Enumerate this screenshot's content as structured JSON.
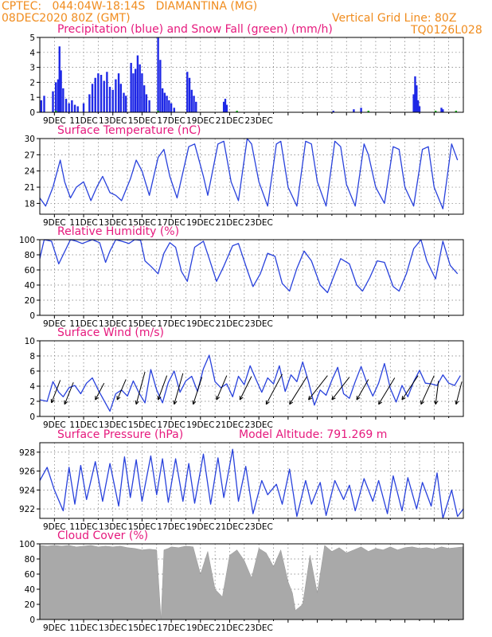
{
  "header": {
    "line1": "CPTEC:   044:04W-18:14S   DIAMANTINA (MG)",
    "line2": "08DEC2020 80Z (GMT)",
    "grid_note": "Vertical Grid Line: 80Z",
    "code": "TQ0126L028"
  },
  "colors": {
    "header": "#f08c1e",
    "title": "#e6197d",
    "precip": "#1e28e6",
    "snow": "#00b400",
    "line": "#2841dc",
    "cloud": "#a9a9a9",
    "arrow": "#000000"
  },
  "x_ticks": [
    "9DEC",
    "11DEC",
    "13DEC",
    "15DEC",
    "17DEC",
    "19DEC",
    "21DEC",
    "23DEC"
  ],
  "chart_data": [
    {
      "type": "bar",
      "id": "precip",
      "title": "Precipitation (blue) and Snow Fall (green) (mm/h)",
      "ylim": [
        0,
        5
      ],
      "yticks": [
        "0",
        "1",
        "2",
        "3",
        "4",
        "5"
      ],
      "series": [
        {
          "name": "Precipitation",
          "points": [
            [
              0.1,
              0.8
            ],
            [
              0.3,
              1.1
            ],
            [
              0.9,
              1.4
            ],
            [
              1.1,
              2.0
            ],
            [
              1.25,
              2.2
            ],
            [
              1.35,
              4.4
            ],
            [
              1.45,
              2.8
            ],
            [
              1.6,
              1.6
            ],
            [
              1.8,
              0.9
            ],
            [
              2.0,
              0.6
            ],
            [
              2.2,
              0.8
            ],
            [
              2.4,
              0.5
            ],
            [
              2.6,
              0.4
            ],
            [
              3.0,
              0.6
            ],
            [
              3.4,
              1.2
            ],
            [
              3.6,
              1.9
            ],
            [
              3.8,
              2.3
            ],
            [
              4.0,
              2.6
            ],
            [
              4.2,
              2.5
            ],
            [
              4.4,
              2.1
            ],
            [
              4.6,
              2.7
            ],
            [
              4.8,
              1.7
            ],
            [
              5.0,
              1.5
            ],
            [
              5.2,
              2.2
            ],
            [
              5.4,
              2.6
            ],
            [
              5.55,
              1.9
            ],
            [
              5.75,
              1.3
            ],
            [
              5.9,
              1.1
            ],
            [
              6.25,
              3.3
            ],
            [
              6.4,
              2.6
            ],
            [
              6.55,
              2.9
            ],
            [
              6.7,
              3.8
            ],
            [
              6.85,
              3.2
            ],
            [
              7.0,
              2.6
            ],
            [
              7.15,
              1.8
            ],
            [
              7.3,
              1.2
            ],
            [
              7.5,
              0.8
            ],
            [
              8.1,
              5.0
            ],
            [
              8.25,
              3.5
            ],
            [
              8.4,
              1.6
            ],
            [
              8.55,
              1.3
            ],
            [
              8.7,
              1.1
            ],
            [
              8.85,
              0.8
            ],
            [
              9.0,
              0.6
            ],
            [
              9.2,
              0.3
            ],
            [
              10.1,
              2.7
            ],
            [
              10.25,
              2.3
            ],
            [
              10.4,
              1.5
            ],
            [
              10.55,
              1.1
            ],
            [
              10.7,
              0.7
            ],
            [
              12.6,
              0.7
            ],
            [
              12.7,
              0.9
            ],
            [
              12.8,
              0.5
            ],
            [
              20.1,
              0.1
            ],
            [
              21.5,
              0.2
            ],
            [
              22.0,
              0.3
            ],
            [
              25.6,
              1.2
            ],
            [
              25.7,
              2.4
            ],
            [
              25.8,
              1.8
            ],
            [
              25.9,
              0.8
            ],
            [
              26.0,
              0.4
            ],
            [
              27.5,
              0.3
            ],
            [
              27.6,
              0.2
            ]
          ]
        },
        {
          "name": "Snow Fall",
          "points": [
            [
              1.1,
              0.1
            ],
            [
              8.1,
              0.1
            ],
            [
              13.5,
              0.1
            ],
            [
              22.5,
              0.1
            ],
            [
              27.1,
              0.1
            ],
            [
              28.5,
              0.1
            ]
          ]
        }
      ]
    },
    {
      "type": "line",
      "id": "temp",
      "title": "Surface Temperature (nC)",
      "ylim": [
        16,
        30
      ],
      "yticks": [
        "18",
        "21",
        "24",
        "27",
        "30"
      ],
      "x": [
        0,
        0.4,
        0.9,
        1.4,
        1.7,
        2.1,
        2.5,
        3.0,
        3.5,
        3.9,
        4.3,
        4.8,
        5.2,
        5.6,
        6.2,
        6.6,
        7.0,
        7.5,
        8.1,
        8.5,
        8.9,
        9.4,
        10.2,
        10.6,
        11.2,
        11.5,
        12.2,
        12.6,
        13.1,
        13.6,
        14.2,
        14.5,
        15.0,
        15.6,
        16.2,
        16.5,
        17.0,
        17.6,
        18.2,
        18.6,
        19.0,
        19.6,
        20.2,
        20.6,
        21.0,
        21.6,
        22.2,
        22.5,
        23.0,
        23.6,
        24.2,
        24.6,
        25.0,
        25.6,
        26.2,
        26.6,
        27.0,
        27.6,
        28.2,
        28.6
      ],
      "y": [
        19,
        17.5,
        21,
        26,
        22,
        19,
        21,
        22,
        18.5,
        21,
        23,
        20,
        19.5,
        18.5,
        22.5,
        26,
        24,
        19.5,
        26.5,
        28,
        23,
        19,
        28.5,
        29,
        23,
        19.5,
        29,
        29.5,
        22,
        18.5,
        30,
        29,
        22,
        17.5,
        29,
        29.5,
        21,
        17.5,
        29.5,
        29,
        22,
        17.5,
        29.5,
        28.5,
        21.5,
        17.5,
        29,
        27,
        21,
        18,
        28.5,
        28,
        21,
        17.5,
        28,
        28.5,
        21,
        17,
        29,
        26
      ]
    },
    {
      "type": "line",
      "id": "rh",
      "title": "Relative Humidity (%)",
      "ylim": [
        0,
        100
      ],
      "yticks": [
        "0",
        "20",
        "40",
        "60",
        "80",
        "100"
      ],
      "x": [
        0,
        0.3,
        0.8,
        1.3,
        1.8,
        2.1,
        2.5,
        2.9,
        3.6,
        4.1,
        4.5,
        4.8,
        5.2,
        5.6,
        6.1,
        6.5,
        6.9,
        7.2,
        7.6,
        8.1,
        8.5,
        8.9,
        9.3,
        9.7,
        10.1,
        10.6,
        11.2,
        11.6,
        12.1,
        12.6,
        13.2,
        13.6,
        14.2,
        14.6,
        15.1,
        15.6,
        16.1,
        16.6,
        17.1,
        17.6,
        18.1,
        18.6,
        19.2,
        19.7,
        20.1,
        20.6,
        21.2,
        21.7,
        22.1,
        22.6,
        23.1,
        23.6,
        24.2,
        24.6,
        25.1,
        25.6,
        26.1,
        26.5,
        27.1,
        27.6,
        28.1,
        28.6
      ],
      "y": [
        75,
        100,
        98,
        68,
        88,
        100,
        98,
        95,
        100,
        96,
        70,
        85,
        100,
        98,
        95,
        100,
        99,
        72,
        65,
        55,
        82,
        96,
        90,
        58,
        45,
        90,
        98,
        75,
        45,
        65,
        92,
        95,
        60,
        38,
        55,
        82,
        78,
        42,
        32,
        62,
        85,
        72,
        40,
        30,
        50,
        75,
        68,
        40,
        32,
        50,
        72,
        70,
        38,
        32,
        55,
        88,
        100,
        72,
        48,
        98,
        66,
        55
      ]
    },
    {
      "type": "line",
      "id": "wind",
      "title": "Surface Wind (m/s)",
      "ylim": [
        0,
        10
      ],
      "yticks": [
        "0",
        "2",
        "4",
        "6",
        "8",
        "10"
      ],
      "x": [
        0,
        0.5,
        0.9,
        1.3,
        1.6,
        2.0,
        2.4,
        2.8,
        3.2,
        3.6,
        4.0,
        4.4,
        4.8,
        5.2,
        5.6,
        6.0,
        6.4,
        6.8,
        7.2,
        7.6,
        8.0,
        8.4,
        8.8,
        9.2,
        9.6,
        10.0,
        10.4,
        10.8,
        11.2,
        11.6,
        12.0,
        12.4,
        12.8,
        13.2,
        13.6,
        14.0,
        14.4,
        14.8,
        15.2,
        15.6,
        16.0,
        16.4,
        16.8,
        17.2,
        17.6,
        18.0,
        18.4,
        18.8,
        19.2,
        19.6,
        20.0,
        20.4,
        20.8,
        21.2,
        21.6,
        22.0,
        22.4,
        22.8,
        23.2,
        23.6,
        24.0,
        24.4,
        24.8,
        25.2,
        25.6,
        26.0,
        26.4,
        26.8,
        27.2,
        27.6,
        28.0,
        28.4,
        28.8
      ],
      "y": [
        2.2,
        2.0,
        4.6,
        3.2,
        2.6,
        3.8,
        4.1,
        3.0,
        4.4,
        5.1,
        3.5,
        2.1,
        0.7,
        3.0,
        3.5,
        2.7,
        4.7,
        3.1,
        1.8,
        6.2,
        3.5,
        1.8,
        4.5,
        6.0,
        3.2,
        4.7,
        5.3,
        3.3,
        6.3,
        8.1,
        4.6,
        3.8,
        4.3,
        2.6,
        5.3,
        4.2,
        6.7,
        4.9,
        3.2,
        5.1,
        4.3,
        6.7,
        3.3,
        5.5,
        4.6,
        7.2,
        4.6,
        1.5,
        3.5,
        2.8,
        4.8,
        6.5,
        3.0,
        2.4,
        4.6,
        6.6,
        4.4,
        2.7,
        4.4,
        7.0,
        3.7,
        1.9,
        4.1,
        2.6,
        4.6,
        6.1,
        4.4,
        4.3,
        4.1,
        5.5,
        4.4,
        4.1,
        5.4
      ],
      "arrows": [
        [
          0.8,
          0
        ],
        [
          1.7,
          2
        ],
        [
          3.8,
          1
        ],
        [
          5.3,
          3
        ],
        [
          6.6,
          4
        ],
        [
          8.1,
          5
        ],
        [
          9.2,
          4
        ],
        [
          10.5,
          6
        ],
        [
          12.1,
          5
        ],
        [
          13.7,
          7
        ],
        [
          15.5,
          6
        ],
        [
          17.1,
          8
        ],
        [
          18.4,
          7
        ],
        [
          20.0,
          7
        ],
        [
          21.7,
          9
        ],
        [
          23.2,
          8
        ],
        [
          24.8,
          9
        ],
        [
          26.1,
          8
        ],
        [
          27.1,
          10
        ],
        [
          28.5,
          10
        ]
      ],
      "arrow_ends": [
        [
          1.4,
          4.8
        ],
        [
          2.3,
          4.5
        ],
        [
          4.4,
          4.4
        ],
        [
          5.9,
          4.9
        ],
        [
          7.2,
          5.9
        ],
        [
          8.7,
          5.4
        ],
        [
          9.8,
          5.7
        ],
        [
          11.1,
          5.2
        ],
        [
          12.8,
          5.4
        ],
        [
          14.5,
          5.3
        ],
        [
          16.6,
          5.6
        ],
        [
          18.3,
          5.3
        ],
        [
          19.7,
          5.4
        ],
        [
          21.2,
          5.2
        ],
        [
          22.5,
          4.9
        ],
        [
          24.3,
          5.1
        ],
        [
          25.9,
          5.4
        ],
        [
          27.0,
          5.4
        ],
        [
          27.3,
          4.7
        ],
        [
          28.9,
          4.6
        ]
      ]
    },
    {
      "type": "line",
      "id": "pressure",
      "title": "Surface Pressure (hPa)",
      "annotation": "Model Altitude: 791.269 m",
      "ylim": [
        921,
        929
      ],
      "yticks": [
        "922",
        "924",
        "926",
        "928"
      ],
      "x": [
        0,
        0.5,
        1.0,
        1.6,
        2.0,
        2.4,
        2.8,
        3.2,
        3.8,
        4.3,
        4.8,
        5.4,
        5.8,
        6.2,
        6.6,
        7.0,
        7.6,
        8.0,
        8.4,
        8.8,
        9.3,
        9.8,
        10.2,
        10.6,
        11.2,
        11.7,
        12.2,
        12.6,
        13.2,
        13.6,
        14.1,
        14.6,
        15.2,
        15.6,
        16.2,
        16.6,
        17.1,
        17.6,
        18.2,
        18.6,
        19.2,
        19.6,
        20.2,
        20.8,
        21.2,
        21.6,
        22.2,
        22.8,
        23.2,
        23.8,
        24.2,
        24.8,
        25.2,
        25.8,
        26.2,
        26.8,
        27.2,
        27.6,
        28.2,
        28.6,
        29.0
      ],
      "y": [
        925,
        926.4,
        924,
        921.8,
        926.4,
        922.5,
        926.6,
        923,
        927,
        922.8,
        926.8,
        922.3,
        927.5,
        923.2,
        927.2,
        922.8,
        927.6,
        923.5,
        927.3,
        922.7,
        927.3,
        922.8,
        926.8,
        922.6,
        927.8,
        922.5,
        927.4,
        923.2,
        928.3,
        922.8,
        926.5,
        921.5,
        925,
        923.5,
        924.6,
        922.5,
        926.2,
        921.2,
        925,
        922.5,
        924.8,
        921.3,
        925,
        923,
        924.5,
        921.8,
        925.2,
        922.8,
        925,
        921.5,
        925.5,
        921.8,
        925.3,
        922,
        924.8,
        922.3,
        925.8,
        921,
        924,
        921.2,
        922
      ]
    },
    {
      "type": "area",
      "id": "cloud",
      "title": "Cloud Cover (%)",
      "ylim": [
        0,
        100
      ],
      "yticks": [
        "0",
        "20",
        "40",
        "60",
        "80",
        "100"
      ],
      "x": [
        0,
        0.5,
        1.0,
        1.5,
        2.0,
        2.5,
        3.0,
        3.5,
        4.0,
        4.5,
        5.0,
        5.5,
        6.0,
        6.5,
        7.0,
        7.5,
        8.0,
        8.3,
        8.5,
        8.8,
        9.0,
        9.5,
        10.0,
        10.5,
        11.0,
        11.5,
        12.0,
        12.5,
        13.0,
        13.5,
        14.0,
        14.5,
        15.0,
        15.5,
        16.0,
        16.5,
        17.0,
        17.3,
        17.5,
        18.0,
        18.5,
        19.0,
        19.5,
        20.0,
        20.5,
        21.0,
        21.5,
        22.0,
        22.5,
        23.0,
        23.5,
        24.0,
        24.5,
        25.0,
        25.5,
        26.0,
        26.5,
        27.0,
        27.5,
        28.0,
        28.5,
        29.0
      ],
      "y": [
        98,
        97,
        98,
        97,
        98,
        96,
        97,
        98,
        96,
        97,
        96,
        97,
        95,
        94,
        92,
        93,
        92,
        0,
        92,
        94,
        96,
        95,
        97,
        96,
        60,
        90,
        40,
        30,
        85,
        92,
        78,
        55,
        94,
        88,
        70,
        92,
        50,
        35,
        12,
        20,
        85,
        35,
        98,
        90,
        95,
        88,
        92,
        96,
        90,
        94,
        92,
        96,
        92,
        95,
        96,
        94,
        95,
        93,
        96,
        94,
        95,
        96
      ]
    }
  ]
}
